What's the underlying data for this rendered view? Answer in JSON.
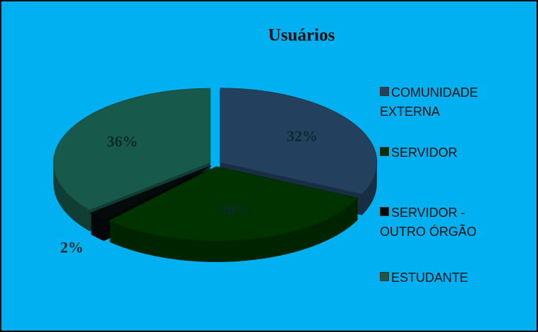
{
  "chart_data": {
    "type": "pie",
    "title": "Usuários",
    "categories": [
      "COMUNIDADE EXTERNA",
      "SERVIDOR",
      "SERVIDOR - OUTRO ÓRGÃO",
      "ESTUDANTE"
    ],
    "values": [
      32,
      30,
      2,
      36
    ],
    "value_labels": [
      "32%",
      "30%",
      "2%",
      "36%"
    ],
    "colors": [
      "#23415f",
      "#003300",
      "#050a0a",
      "#17594b"
    ],
    "legend": "right"
  }
}
